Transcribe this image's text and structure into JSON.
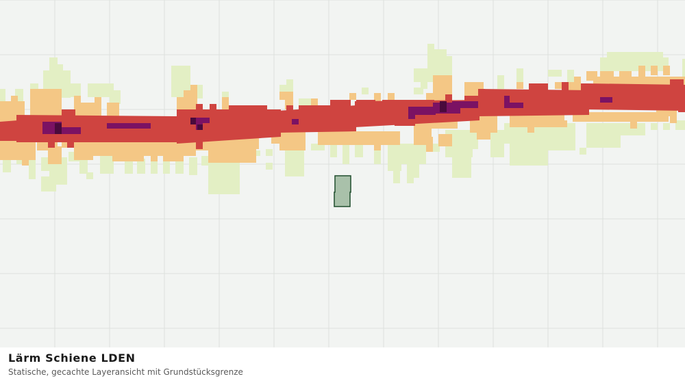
{
  "map": {
    "layer_title": "Lärm Schiene LDEN",
    "layer_subtitle": "Statische, gecachte Layeransicht mit Grundstücksgrenze",
    "colors": {
      "background": "#f2f4f2",
      "grid": "#dde1dd",
      "band_lowest": "#e3efc4",
      "band_low": "#f4c785",
      "band_mid": "#cf4440",
      "band_high": "#7b1263",
      "band_highest": "#4a0a3c",
      "parcel_fill": "#a9c1aa",
      "parcel_stroke": "#1f4d2c"
    }
  }
}
